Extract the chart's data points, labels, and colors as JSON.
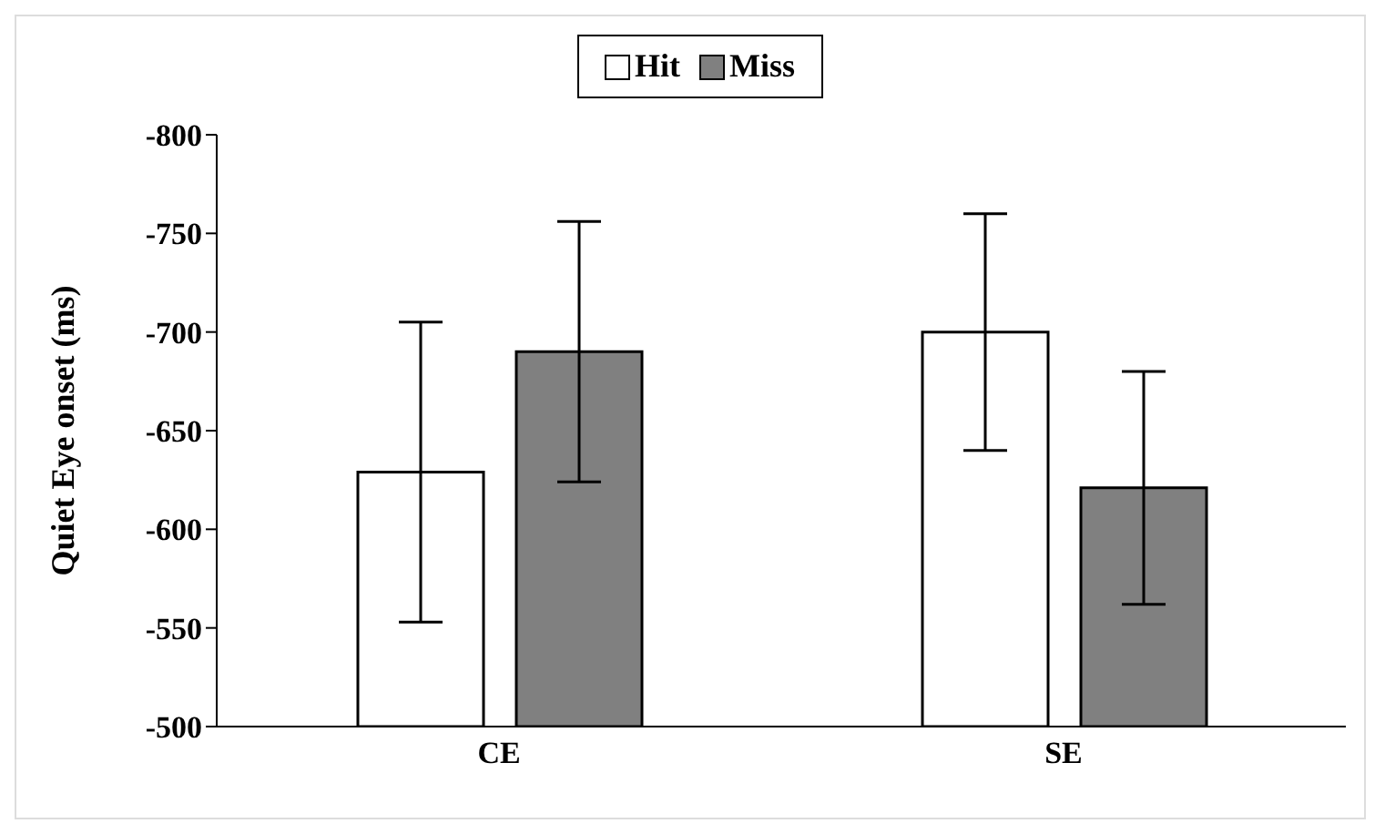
{
  "chart_data": {
    "type": "bar",
    "ylabel": "Quiet Eye onset (ms)",
    "categories": [
      "CE",
      "SE"
    ],
    "series": [
      {
        "name": "Hit",
        "color": "#ffffff",
        "values": [
          -629,
          -700
        ],
        "errors": [
          76,
          60
        ]
      },
      {
        "name": "Miss",
        "color": "#808080",
        "values": [
          -690,
          -621
        ],
        "errors": [
          66,
          59
        ]
      }
    ],
    "ylim": [
      -500,
      -800
    ],
    "yticks": [
      -500,
      -550,
      -600,
      -650,
      -700,
      -750,
      -800
    ],
    "grid": false,
    "legend": "top"
  }
}
